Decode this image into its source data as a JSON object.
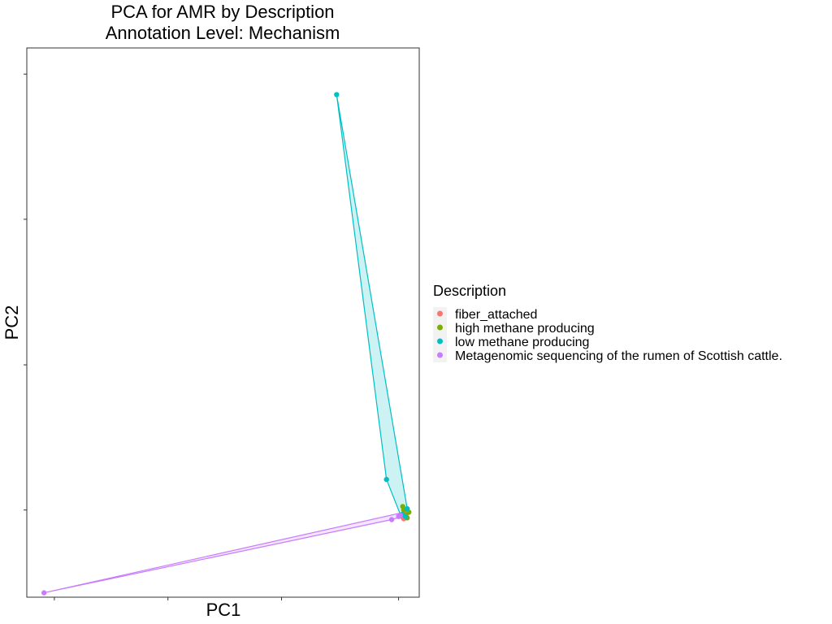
{
  "chart_data": {
    "type": "scatter",
    "title": [
      "PCA for AMR by Description",
      "Annotation Level: Mechanism"
    ],
    "xlabel": "PC1",
    "ylabel": "PC2",
    "xlim": [
      -0.08,
      1.06
    ],
    "ylim": [
      -0.2,
      1.06
    ],
    "x_ticks": [
      0,
      0.33,
      0.66,
      1.0
    ],
    "y_ticks": [
      0,
      0.333,
      0.667,
      1.0
    ],
    "grid": false,
    "legend": {
      "title": "Description",
      "placement": "right",
      "entries": [
        "fiber_attached",
        "high methane producing",
        "low methane producing",
        "Metagenomic sequencing of the rumen of Scottish cattle."
      ]
    },
    "series": [
      {
        "name": "fiber_attached",
        "color": "#F8766D",
        "points": [
          [
            1.01,
            -0.015
          ],
          [
            1.02,
            -0.005
          ],
          [
            1.015,
            -0.02
          ]
        ],
        "hull": []
      },
      {
        "name": "high methane producing",
        "color": "#7CAE00",
        "points": [
          [
            1.012,
            0.008
          ],
          [
            1.03,
            -0.005
          ],
          [
            1.02,
            -0.012
          ],
          [
            1.015,
            0.0
          ],
          [
            1.025,
            -0.018
          ]
        ],
        "hull": [
          [
            1.012,
            0.008
          ],
          [
            1.03,
            -0.005
          ],
          [
            1.025,
            -0.018
          ],
          [
            1.015,
            -0.02
          ]
        ]
      },
      {
        "name": "low methane producing",
        "color": "#00BFC4",
        "points": [
          [
            0.82,
            0.953
          ],
          [
            0.965,
            0.07
          ],
          [
            1.025,
            0.003
          ],
          [
            1.02,
            -0.015
          ],
          [
            1.01,
            -0.01
          ]
        ],
        "hull": [
          [
            0.82,
            0.953
          ],
          [
            0.965,
            0.07
          ],
          [
            1.005,
            -0.01
          ],
          [
            1.02,
            -0.02
          ],
          [
            1.025,
            0.003
          ]
        ]
      },
      {
        "name": "Metagenomic sequencing of the rumen of Scottish cattle.",
        "color": "#C77CFF",
        "points": [
          [
            -0.03,
            -0.19
          ],
          [
            0.98,
            -0.022
          ],
          [
            1.005,
            -0.012
          ],
          [
            1.0,
            -0.015
          ]
        ],
        "hull": [
          [
            -0.03,
            -0.19
          ],
          [
            1.005,
            -0.007
          ],
          [
            1.01,
            -0.015
          ],
          [
            0.98,
            -0.022
          ]
        ]
      }
    ]
  }
}
